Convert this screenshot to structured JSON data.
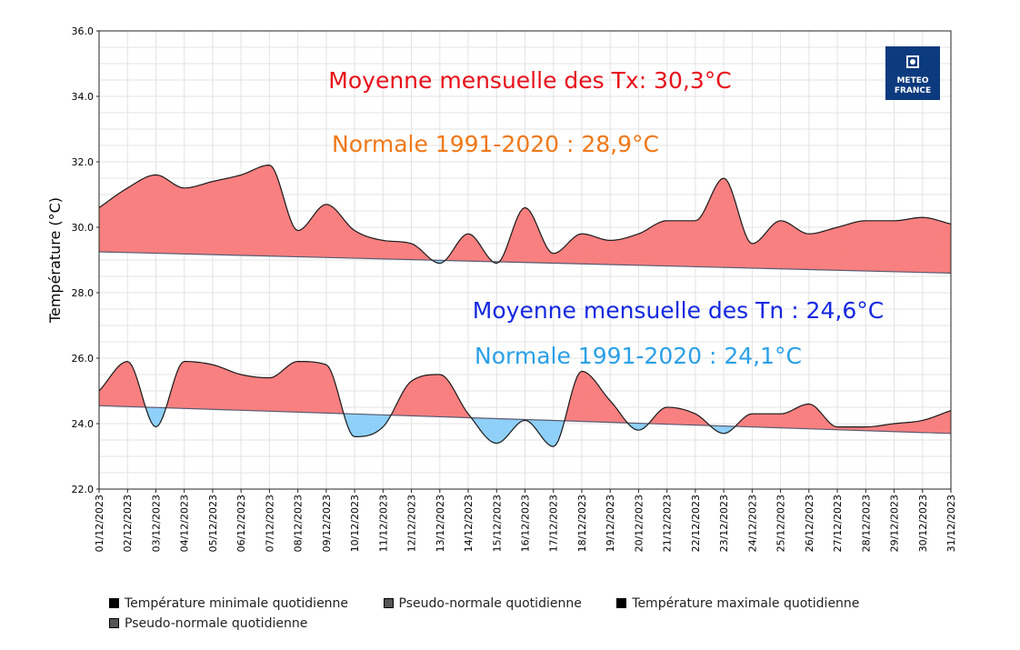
{
  "chart_data": {
    "type": "area",
    "ylabel": "Température (°C)",
    "xlabel": "",
    "ylim": [
      22.0,
      36.0
    ],
    "yticks": [
      "22.0",
      "24.0",
      "26.0",
      "28.0",
      "30.0",
      "32.0",
      "34.0",
      "36.0"
    ],
    "ytick_values": [
      22,
      24,
      26,
      28,
      30,
      32,
      34,
      36
    ],
    "grid": true,
    "categories": [
      "01/12/2023",
      "02/12/2023",
      "03/12/2023",
      "04/12/2023",
      "05/12/2023",
      "06/12/2023",
      "07/12/2023",
      "08/12/2023",
      "09/12/2023",
      "10/12/2023",
      "11/12/2023",
      "12/12/2023",
      "13/12/2023",
      "14/12/2023",
      "15/12/2023",
      "16/12/2023",
      "17/12/2023",
      "18/12/2023",
      "19/12/2023",
      "20/12/2023",
      "21/12/2023",
      "22/12/2023",
      "23/12/2023",
      "24/12/2023",
      "25/12/2023",
      "26/12/2023",
      "27/12/2023",
      "28/12/2023",
      "29/12/2023",
      "30/12/2023",
      "31/12/2023"
    ],
    "series": [
      {
        "name": "Température maximale quotidienne",
        "values": [
          30.6,
          31.2,
          31.6,
          31.2,
          31.4,
          31.6,
          31.9,
          29.9,
          30.7,
          29.9,
          29.6,
          29.5,
          28.9,
          29.8,
          28.9,
          30.6,
          29.2,
          29.8,
          29.6,
          29.8,
          30.2,
          30.2,
          31.5,
          29.5,
          30.2,
          29.8,
          30.0,
          30.2,
          30.2,
          30.3,
          30.1
        ]
      },
      {
        "name": "Pseudo-normale quotidienne (Tx)",
        "start": 29.25,
        "end": 28.6
      },
      {
        "name": "Température minimale quotidienne",
        "values": [
          25.0,
          25.9,
          23.9,
          25.9,
          25.8,
          25.5,
          25.4,
          25.9,
          25.8,
          23.6,
          23.9,
          25.3,
          25.5,
          24.3,
          23.4,
          24.1,
          23.3,
          25.6,
          24.7,
          23.8,
          24.5,
          24.3,
          23.7,
          24.3,
          24.3,
          24.6,
          23.9,
          23.9,
          24.0,
          24.1,
          24.4
        ]
      },
      {
        "name": "Pseudo-normale quotidienne (Tn)",
        "start": 24.55,
        "end": 23.7
      }
    ],
    "annotations": [
      {
        "text": "Moyenne mensuelle des Tx: 30,3°C",
        "color": "#e8101a"
      },
      {
        "text": "Normale 1991-2020 : 28,9°C",
        "color": "#f07818"
      },
      {
        "text": "Moyenne mensuelle des Tn : 24,6°C",
        "color": "#1428e0"
      },
      {
        "text": "Normale 1991-2020 : 24,1°C",
        "color": "#2aa0e8"
      }
    ],
    "colors": {
      "above": "#f98080",
      "below": "#8fd0f8",
      "line": "#1a1a1a",
      "normal_line": "#5a5a70"
    }
  },
  "logo": {
    "line1": "METEO",
    "line2": "FRANCE",
    "bg": "#0b3a7e"
  },
  "legend": [
    {
      "label": "Température minimale quotidienne",
      "swatch": "#000000"
    },
    {
      "label": "Pseudo-normale quotidienne",
      "swatch": "#555555"
    },
    {
      "label": "Température maximale quotidienne",
      "swatch": "#000000"
    },
    {
      "label": "Pseudo-normale quotidienne",
      "swatch": "#555555"
    }
  ]
}
